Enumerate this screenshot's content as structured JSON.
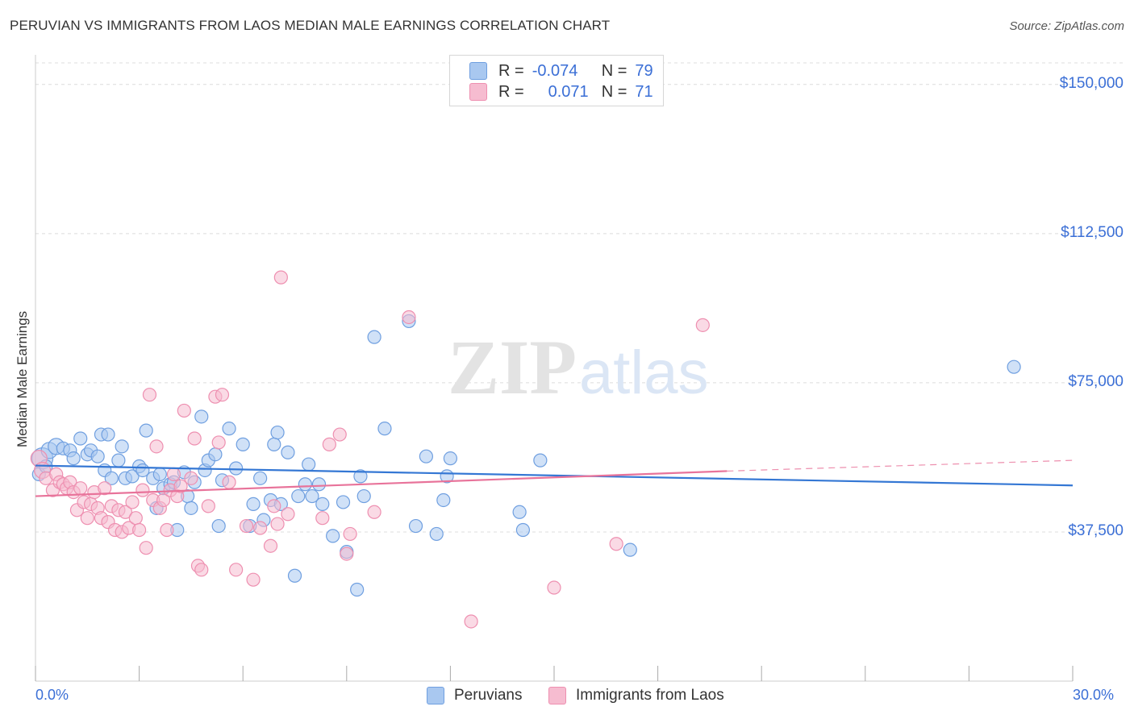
{
  "title": "PERUVIAN VS IMMIGRANTS FROM LAOS MEDIAN MALE EARNINGS CORRELATION CHART",
  "source": "Source: ZipAtlas.com",
  "watermark": {
    "zip": "ZIP",
    "atlas": "atlas"
  },
  "legend_top": {
    "rows": [
      {
        "r_label": "R =",
        "r_value": "-0.074",
        "n_label": "N =",
        "n_value": "79"
      },
      {
        "r_label": "R =",
        "r_value": "0.071",
        "n_label": "N =",
        "n_value": "71"
      }
    ]
  },
  "colors": {
    "blue_fill": "#a9c8f0",
    "blue_stroke": "#6f9fe0",
    "blue_line": "#3477d4",
    "pink_fill": "#f6bcd0",
    "pink_stroke": "#ee8fb0",
    "pink_line": "#e8739a",
    "grid": "#dcdcdc",
    "axis_text": "#3b6fd6"
  },
  "chart_data": {
    "type": "scatter",
    "title": "PERUVIAN VS IMMIGRANTS FROM LAOS MEDIAN MALE EARNINGS CORRELATION CHART",
    "xlabel": "",
    "ylabel": "Median Male Earnings",
    "xlim": [
      0,
      30
    ],
    "ylim": [
      0,
      153000
    ],
    "x_tick_labels": [
      "0.0%",
      "30.0%"
    ],
    "y_ticks": [
      37500,
      75000,
      112500,
      150000
    ],
    "y_tick_labels": [
      "$37,500",
      "$75,000",
      "$112,500",
      "$150,000"
    ],
    "grid": true,
    "legend_position": "top-center and bottom",
    "series": [
      {
        "name": "Peruvians",
        "r": -0.074,
        "n": 79,
        "trend": {
          "x": [
            0,
            30
          ],
          "y": [
            54200,
            49200
          ]
        },
        "points": [
          [
            0.2,
            56000,
            3
          ],
          [
            0.4,
            58000,
            2
          ],
          [
            0.6,
            59000,
            2
          ],
          [
            0.8,
            58500,
            1
          ],
          [
            1.0,
            58000,
            1
          ],
          [
            1.1,
            56000,
            1
          ],
          [
            1.3,
            61000,
            1
          ],
          [
            1.5,
            57000,
            1
          ],
          [
            1.6,
            58000,
            1
          ],
          [
            1.8,
            56500,
            1
          ],
          [
            1.9,
            62000,
            1
          ],
          [
            2.0,
            53000,
            1
          ],
          [
            2.1,
            62000,
            1
          ],
          [
            2.2,
            51000,
            1
          ],
          [
            2.4,
            55500,
            1
          ],
          [
            2.5,
            59000,
            1
          ],
          [
            2.6,
            51000,
            1
          ],
          [
            2.8,
            51500,
            1
          ],
          [
            3.0,
            54000,
            1
          ],
          [
            3.1,
            53000,
            1
          ],
          [
            3.2,
            63000,
            1
          ],
          [
            3.4,
            51000,
            1
          ],
          [
            3.5,
            43500,
            1
          ],
          [
            3.6,
            52000,
            1
          ],
          [
            3.7,
            48500,
            1
          ],
          [
            3.9,
            49500,
            1
          ],
          [
            4.0,
            50000,
            1
          ],
          [
            4.1,
            38000,
            1
          ],
          [
            4.3,
            52500,
            1
          ],
          [
            4.4,
            46500,
            1
          ],
          [
            4.5,
            43500,
            1
          ],
          [
            4.6,
            50000,
            1
          ],
          [
            4.8,
            66500,
            1
          ],
          [
            4.9,
            53000,
            1
          ],
          [
            5.0,
            55500,
            1
          ],
          [
            5.2,
            57000,
            1
          ],
          [
            5.3,
            39000,
            1
          ],
          [
            5.4,
            50500,
            1
          ],
          [
            5.6,
            63500,
            1
          ],
          [
            5.8,
            53500,
            1
          ],
          [
            6.0,
            59500,
            1
          ],
          [
            6.2,
            39000,
            1
          ],
          [
            6.3,
            44500,
            1
          ],
          [
            6.5,
            51000,
            1
          ],
          [
            6.6,
            40500,
            1
          ],
          [
            6.8,
            45500,
            1
          ],
          [
            6.9,
            59500,
            1
          ],
          [
            7.0,
            62500,
            1
          ],
          [
            7.1,
            44500,
            1
          ],
          [
            7.3,
            57500,
            1
          ],
          [
            7.5,
            26500,
            1
          ],
          [
            7.6,
            46500,
            1
          ],
          [
            7.8,
            49500,
            1
          ],
          [
            7.9,
            54500,
            1
          ],
          [
            8.0,
            46500,
            1
          ],
          [
            8.2,
            49500,
            1
          ],
          [
            8.3,
            44500,
            1
          ],
          [
            8.6,
            36500,
            1
          ],
          [
            9.0,
            32500,
            1
          ],
          [
            9.3,
            23000,
            1
          ],
          [
            8.9,
            45000,
            1
          ],
          [
            9.4,
            51500,
            1
          ],
          [
            9.5,
            46500,
            1
          ],
          [
            9.8,
            86500,
            1
          ],
          [
            10.1,
            63500,
            1
          ],
          [
            10.8,
            90500,
            1
          ],
          [
            11.0,
            39000,
            1
          ],
          [
            11.3,
            56500,
            1
          ],
          [
            11.6,
            37000,
            1
          ],
          [
            11.8,
            45500,
            1
          ],
          [
            11.9,
            51500,
            1
          ],
          [
            12.0,
            56000,
            1
          ],
          [
            14.0,
            42500,
            1
          ],
          [
            14.1,
            38000,
            1
          ],
          [
            14.6,
            55500,
            1
          ],
          [
            17.2,
            33000,
            1
          ],
          [
            28.3,
            79000,
            1
          ],
          [
            0.1,
            52000,
            1
          ],
          [
            0.3,
            54000,
            1
          ]
        ]
      },
      {
        "name": "Immigrants from Laos",
        "r": 0.071,
        "n": 71,
        "trend": {
          "x": [
            0,
            20
          ],
          "y": [
            46500,
            52800
          ]
        },
        "trend_dashed": {
          "x": [
            20,
            30
          ],
          "y": [
            52800,
            55500
          ]
        },
        "points": [
          [
            0.1,
            56000,
            2
          ],
          [
            0.2,
            53000,
            2
          ],
          [
            0.3,
            51000,
            1
          ],
          [
            0.5,
            48000,
            1
          ],
          [
            0.6,
            52000,
            1
          ],
          [
            0.7,
            50000,
            1
          ],
          [
            0.8,
            49500,
            1
          ],
          [
            0.9,
            48500,
            1
          ],
          [
            1.0,
            50000,
            1
          ],
          [
            1.1,
            47500,
            1
          ],
          [
            1.2,
            43000,
            1
          ],
          [
            1.3,
            48500,
            1
          ],
          [
            1.4,
            45000,
            1
          ],
          [
            1.5,
            41000,
            1
          ],
          [
            1.6,
            44500,
            1
          ],
          [
            1.7,
            47500,
            1
          ],
          [
            1.8,
            43500,
            1
          ],
          [
            1.9,
            41000,
            1
          ],
          [
            2.0,
            48500,
            1
          ],
          [
            2.1,
            40000,
            1
          ],
          [
            2.2,
            44000,
            1
          ],
          [
            2.3,
            38000,
            1
          ],
          [
            2.4,
            43000,
            1
          ],
          [
            2.5,
            37500,
            1
          ],
          [
            2.6,
            42500,
            1
          ],
          [
            2.7,
            38500,
            1
          ],
          [
            2.8,
            45000,
            1
          ],
          [
            2.9,
            41000,
            1
          ],
          [
            3.0,
            38000,
            1
          ],
          [
            3.1,
            48000,
            1
          ],
          [
            3.2,
            33500,
            1
          ],
          [
            3.3,
            72000,
            1
          ],
          [
            3.4,
            45500,
            1
          ],
          [
            3.5,
            59000,
            1
          ],
          [
            3.6,
            43500,
            1
          ],
          [
            3.7,
            45500,
            1
          ],
          [
            3.8,
            38000,
            1
          ],
          [
            3.9,
            48000,
            1
          ],
          [
            4.0,
            52000,
            1
          ],
          [
            4.1,
            46500,
            1
          ],
          [
            4.2,
            49000,
            1
          ],
          [
            4.3,
            68000,
            1
          ],
          [
            4.5,
            51000,
            1
          ],
          [
            4.6,
            61000,
            1
          ],
          [
            4.7,
            29000,
            1
          ],
          [
            4.8,
            28000,
            1
          ],
          [
            5.0,
            44000,
            1
          ],
          [
            5.2,
            71500,
            1
          ],
          [
            5.3,
            60000,
            1
          ],
          [
            5.4,
            72000,
            1
          ],
          [
            5.6,
            50000,
            1
          ],
          [
            5.8,
            28000,
            1
          ],
          [
            6.1,
            39000,
            1
          ],
          [
            6.3,
            25500,
            1
          ],
          [
            6.5,
            38500,
            1
          ],
          [
            6.8,
            34000,
            1
          ],
          [
            6.9,
            44000,
            1
          ],
          [
            7.0,
            39500,
            1
          ],
          [
            7.1,
            101500,
            1
          ],
          [
            7.3,
            42000,
            1
          ],
          [
            8.3,
            41000,
            1
          ],
          [
            8.5,
            59500,
            1
          ],
          [
            8.8,
            62000,
            1
          ],
          [
            9.0,
            32000,
            1
          ],
          [
            9.1,
            37000,
            1
          ],
          [
            9.8,
            42500,
            1
          ],
          [
            10.8,
            91500,
            1
          ],
          [
            12.6,
            15000,
            1
          ],
          [
            15.0,
            23500,
            1
          ],
          [
            16.8,
            34500,
            1
          ],
          [
            19.3,
            89500,
            1
          ]
        ]
      }
    ]
  },
  "bottom_legend": [
    {
      "label": "Peruvians"
    },
    {
      "label": "Immigrants from Laos"
    }
  ]
}
